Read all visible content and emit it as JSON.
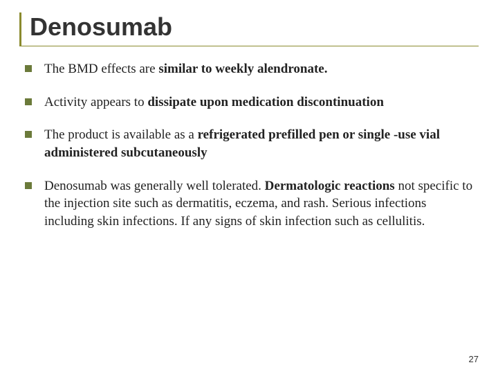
{
  "slide": {
    "title": "Denosumab",
    "title_border_color": "#8a8a2e",
    "bullet_color": "#6b7a3a",
    "bullets": [
      {
        "segments": [
          {
            "text": "The BMD effects are ",
            "bold": false
          },
          {
            "text": "similar to weekly alendronate.",
            "bold": true
          }
        ]
      },
      {
        "segments": [
          {
            "text": "Activity appears to ",
            "bold": false
          },
          {
            "text": "dissipate upon medication discontinuation",
            "bold": true
          }
        ]
      },
      {
        "segments": [
          {
            "text": "The product is available as a ",
            "bold": false
          },
          {
            "text": "refrigerated prefilled pen or single -use vial administered subcutaneously",
            "bold": true
          }
        ]
      },
      {
        "segments": [
          {
            "text": "Denosumab was generally well tolerated. ",
            "bold": false
          },
          {
            "text": "Dermatologic reactions",
            "bold": true
          },
          {
            "text": " not specific to the injection site such as dermatitis, eczema, and rash. Serious infections including skin infections. If any signs of skin infection such as cellulitis.",
            "bold": false
          }
        ]
      }
    ],
    "page_number": "27"
  }
}
